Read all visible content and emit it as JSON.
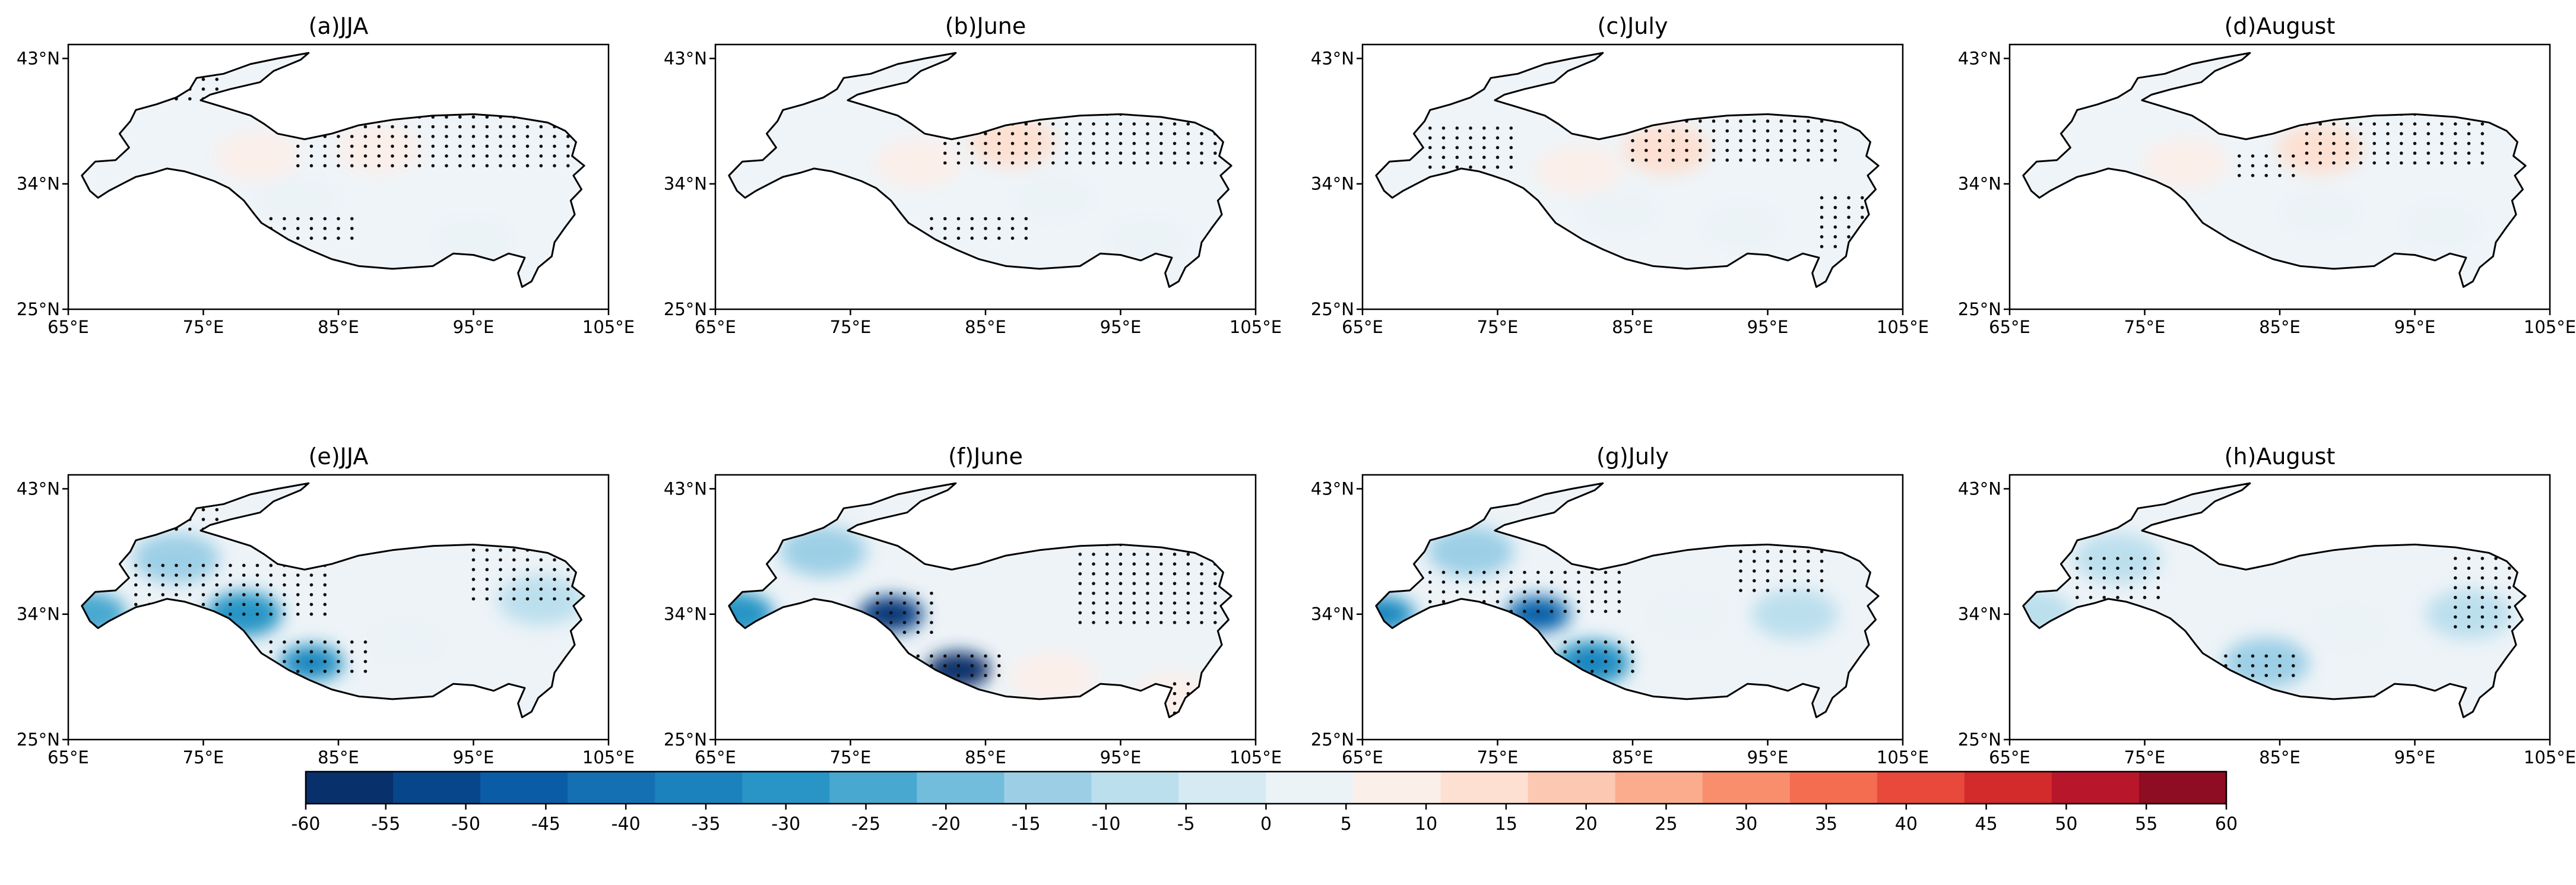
{
  "figure": {
    "panels": [
      {
        "title": "(a)JJA"
      },
      {
        "title": "(b)June"
      },
      {
        "title": "(c)July"
      },
      {
        "title": "(d)August"
      },
      {
        "title": "(e)JJA"
      },
      {
        "title": "(f)June"
      },
      {
        "title": "(g)July"
      },
      {
        "title": "(h)August"
      }
    ],
    "x_ticks": [
      "65°E",
      "75°E",
      "85°E",
      "95°E",
      "105°E"
    ],
    "y_ticks": [
      "43°N",
      "34°N",
      "25°N"
    ],
    "lon_range": [
      65,
      105
    ],
    "lat_range": [
      25,
      44
    ],
    "colorbar": {
      "ticks": [
        "-60",
        "-55",
        "-50",
        "-45",
        "-40",
        "-35",
        "-30",
        "-25",
        "-20",
        "-15",
        "-10",
        "-5",
        "0",
        "5",
        "10",
        "15",
        "20",
        "25",
        "30",
        "35",
        "40",
        "45",
        "50",
        "55",
        "60"
      ],
      "colors": [
        "#08306b",
        "#08468c",
        "#0b5ca6",
        "#1470b3",
        "#1c82bd",
        "#2895c6",
        "#49a8d0",
        "#72bcdc",
        "#9ccfe6",
        "#bcdfee",
        "#d6eaf3",
        "#ecf3f7",
        "#fbefea",
        "#fde0d2",
        "#fcc8b1",
        "#fbac8d",
        "#f98e6c",
        "#f46d50",
        "#e8493b",
        "#d32a2c",
        "#b8172b",
        "#8f0d22"
      ]
    },
    "anomalies": [
      [
        {
          "lon": 88,
          "lat": 36.5,
          "v": 10
        },
        {
          "lon": 79,
          "lat": 36,
          "v": 6
        },
        {
          "lon": 82,
          "lat": 33,
          "v": 4
        },
        {
          "lon": 95,
          "lat": 30,
          "v": 4
        }
      ],
      [
        {
          "lon": 87,
          "lat": 37,
          "v": 12
        },
        {
          "lon": 80,
          "lat": 35.5,
          "v": 6
        },
        {
          "lon": 90,
          "lat": 33,
          "v": 4
        },
        {
          "lon": 97,
          "lat": 30,
          "v": 4
        }
      ],
      [
        {
          "lon": 87.5,
          "lat": 36.5,
          "v": 12
        },
        {
          "lon": 81,
          "lat": 35,
          "v": 6
        },
        {
          "lon": 84,
          "lat": 32,
          "v": 4
        },
        {
          "lon": 93,
          "lat": 31,
          "v": 4
        }
      ],
      [
        {
          "lon": 88,
          "lat": 36.5,
          "v": 12
        },
        {
          "lon": 78,
          "lat": 35.5,
          "v": 8
        },
        {
          "lon": 88,
          "lat": 32,
          "v": 4
        },
        {
          "lon": 97,
          "lat": 31,
          "v": 5
        }
      ],
      [
        {
          "lon": 78,
          "lat": 34,
          "v": -28
        },
        {
          "lon": 83,
          "lat": 30.5,
          "v": -32
        },
        {
          "lon": 66.5,
          "lat": 34,
          "v": -22
        },
        {
          "lon": 73,
          "lat": 38,
          "v": -12
        },
        {
          "lon": 100,
          "lat": 35,
          "v": -8
        },
        {
          "lon": 90,
          "lat": 32,
          "v": 4
        }
      ],
      [
        {
          "lon": 78,
          "lat": 34,
          "v": -50
        },
        {
          "lon": 83,
          "lat": 30,
          "v": -55
        },
        {
          "lon": 66.5,
          "lat": 34,
          "v": -28
        },
        {
          "lon": 73,
          "lat": 38.5,
          "v": -14
        },
        {
          "lon": 90,
          "lat": 29.5,
          "v": 8
        },
        {
          "lon": 99,
          "lat": 28,
          "v": 6
        }
      ],
      [
        {
          "lon": 78,
          "lat": 34,
          "v": -40
        },
        {
          "lon": 82,
          "lat": 30.5,
          "v": -30
        },
        {
          "lon": 66.5,
          "lat": 34,
          "v": -32
        },
        {
          "lon": 73,
          "lat": 38.5,
          "v": -14
        },
        {
          "lon": 97,
          "lat": 34,
          "v": -10
        },
        {
          "lon": 89,
          "lat": 34,
          "v": 4
        }
      ],
      [
        {
          "lon": 84,
          "lat": 30.5,
          "v": -12
        },
        {
          "lon": 73,
          "lat": 38,
          "v": -10
        },
        {
          "lon": 66.5,
          "lat": 34,
          "v": -10
        },
        {
          "lon": 99,
          "lat": 34,
          "v": -10
        },
        {
          "lon": 90,
          "lat": 33,
          "v": 4
        }
      ]
    ],
    "stipple_regions": [
      [
        {
          "lon": [
            82,
            102
          ],
          "lat": [
            35,
            39.5
          ]
        },
        {
          "lon": [
            80,
            86
          ],
          "lat": [
            29.5,
            31.5
          ]
        },
        {
          "lon": [
            72,
            76
          ],
          "lat": [
            40,
            41.5
          ]
        }
      ],
      [
        {
          "lon": [
            82,
            102
          ],
          "lat": [
            35,
            39
          ]
        },
        {
          "lon": [
            81,
            88
          ],
          "lat": [
            29.5,
            31.5
          ]
        }
      ],
      [
        {
          "lon": [
            70,
            76
          ],
          "lat": [
            35,
            38
          ]
        },
        {
          "lon": [
            85,
            100
          ],
          "lat": [
            35.5,
            38.5
          ]
        },
        {
          "lon": [
            99,
            103
          ],
          "lat": [
            29,
            33
          ]
        }
      ],
      [
        {
          "lon": [
            87,
            100
          ],
          "lat": [
            35,
            39
          ]
        },
        {
          "lon": [
            82,
            86
          ],
          "lat": [
            34,
            36
          ]
        }
      ],
      [
        {
          "lon": [
            70,
            84
          ],
          "lat": [
            33.5,
            37.5
          ]
        },
        {
          "lon": [
            80,
            87
          ],
          "lat": [
            29.5,
            32
          ]
        },
        {
          "lon": [
            95,
            102
          ],
          "lat": [
            35,
            40
          ]
        },
        {
          "lon": [
            72,
            76
          ],
          "lat": [
            40,
            41.5
          ]
        }
      ],
      [
        {
          "lon": [
            77,
            81
          ],
          "lat": [
            32.5,
            35.5
          ]
        },
        {
          "lon": [
            80,
            86
          ],
          "lat": [
            29.5,
            31
          ]
        },
        {
          "lon": [
            92,
            102
          ],
          "lat": [
            33,
            39
          ]
        },
        {
          "lon": [
            99,
            101
          ],
          "lat": [
            26.5,
            29
          ]
        }
      ],
      [
        {
          "lon": [
            70,
            84
          ],
          "lat": [
            33.5,
            37
          ]
        },
        {
          "lon": [
            80,
            85
          ],
          "lat": [
            29.5,
            32
          ]
        },
        {
          "lon": [
            93,
            99
          ],
          "lat": [
            35.5,
            38.5
          ]
        }
      ],
      [
        {
          "lon": [
            70,
            76
          ],
          "lat": [
            35,
            38
          ]
        },
        {
          "lon": [
            81,
            86
          ],
          "lat": [
            29,
            31
          ]
        },
        {
          "lon": [
            98,
            102
          ],
          "lat": [
            33,
            38
          ]
        }
      ]
    ]
  }
}
